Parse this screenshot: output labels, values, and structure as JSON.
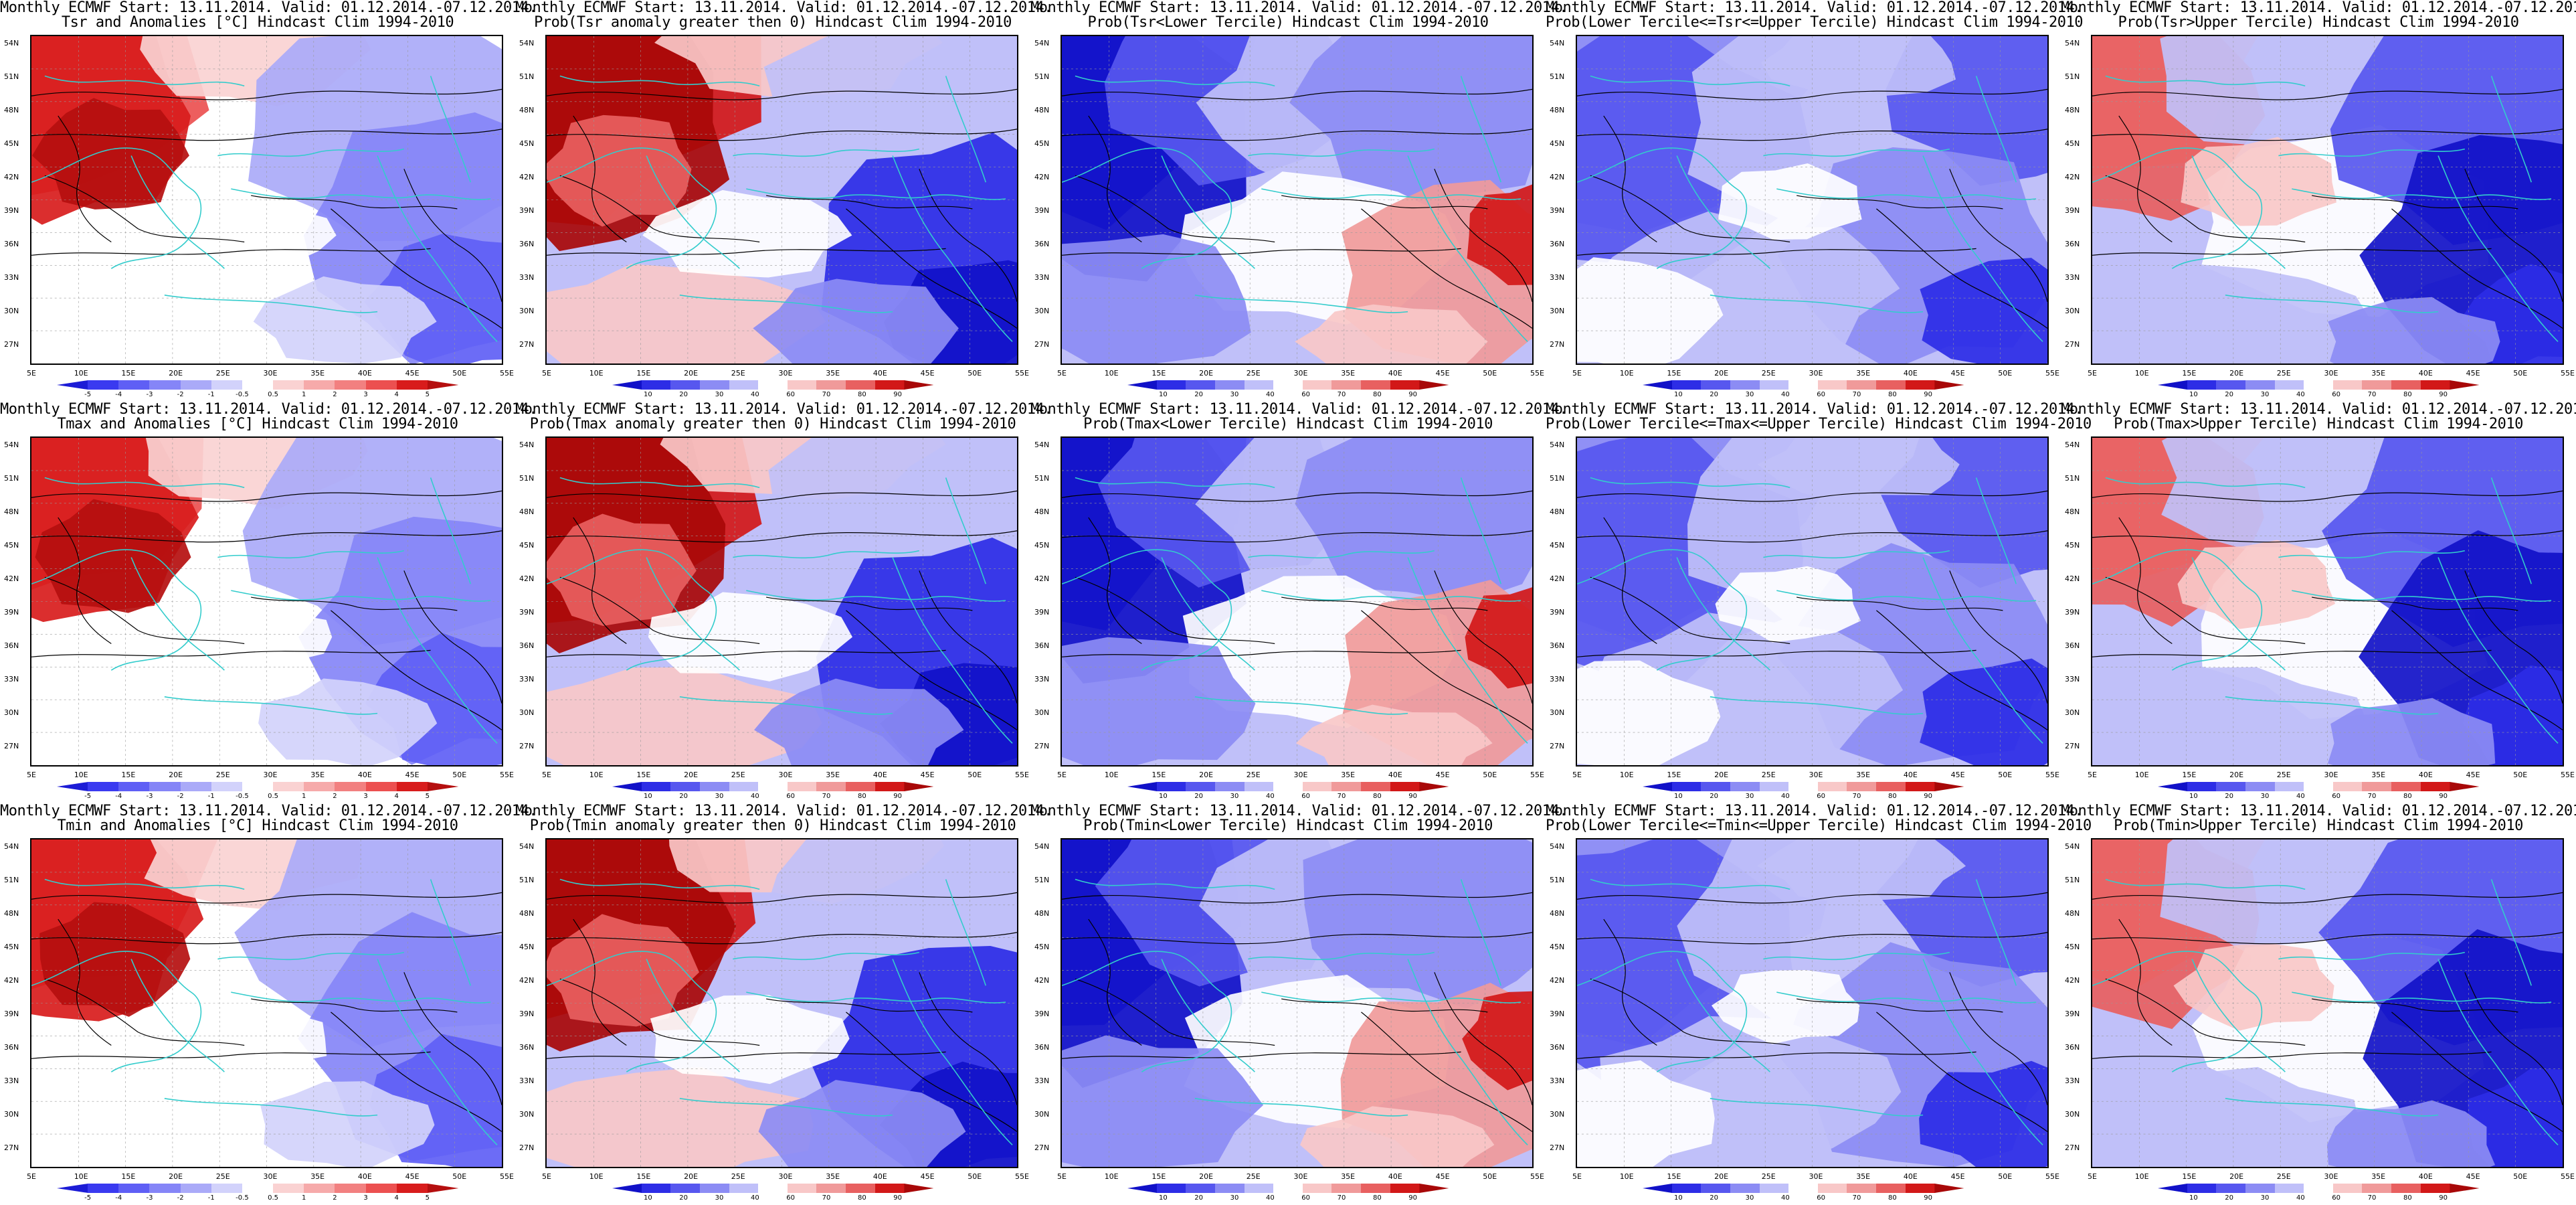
{
  "figure": {
    "line1": "Monthly ECMWF Start: 13.11.2014. Valid: 01.12.2014.-07.12.2014.",
    "lat_ticks": [
      "54N",
      "51N",
      "48N",
      "45N",
      "42N",
      "39N",
      "36N",
      "33N",
      "30N",
      "27N"
    ],
    "lon_ticks": [
      "5E",
      "10E",
      "15E",
      "20E",
      "25E",
      "30E",
      "35E",
      "40E",
      "45E",
      "50E",
      "55E"
    ],
    "colorbar_anomaly": [
      "-5",
      "-4",
      "-3",
      "-2",
      "-1",
      "-0.5",
      "0.5",
      "1",
      "2",
      "3",
      "4",
      "5"
    ],
    "colorbar_probability": [
      "10",
      "20",
      "30",
      "40",
      "60",
      "70",
      "80",
      "90"
    ]
  },
  "colors": {
    "anomaly_scale": [
      "#1c1cd6",
      "#3a3af0",
      "#5f5ff5",
      "#8585f7",
      "#aaaaf8",
      "#d2d2fb",
      "#ffffff",
      "#fad2d2",
      "#f6aaaa",
      "#f28080",
      "#ec5050",
      "#d81c1c",
      "#b50f0f"
    ],
    "prob_scale": [
      "#1111c8",
      "#2d2de6",
      "#5757ef",
      "#8c8cf4",
      "#c0c0f9",
      "#ffffff",
      "#f8c8c8",
      "#f09a9a",
      "#e86060",
      "#d21818",
      "#a80808"
    ],
    "coastline": "#33cccc",
    "contour": "#000000"
  },
  "panels": [
    {
      "id": "tsr-anom",
      "title2": "Tsr and Anomalies [°C] Hindcast Clim 1994-2010",
      "kind": "anomaly",
      "pattern": "A"
    },
    {
      "id": "tsr-pgt0",
      "title2": "Prob(Tsr anomaly greater then 0) Hindcast Clim 1994-2010",
      "kind": "prob",
      "pattern": "B"
    },
    {
      "id": "tsr-low",
      "title2": "Prob(Tsr<Lower Tercile) Hindcast Clim 1994-2010",
      "kind": "prob",
      "pattern": "C"
    },
    {
      "id": "tsr-mid",
      "title2": "Prob(Lower Tercile<=Tsr<=Upper Tercile) Hindcast Clim 1994-2010",
      "kind": "prob",
      "pattern": "D"
    },
    {
      "id": "tsr-up",
      "title2": "Prob(Tsr>Upper Tercile) Hindcast Clim 1994-2010",
      "kind": "prob",
      "pattern": "E"
    },
    {
      "id": "tmax-anom",
      "title2": "Tmax and Anomalies [°C] Hindcast Clim 1994-2010",
      "kind": "anomaly",
      "pattern": "A"
    },
    {
      "id": "tmax-pgt0",
      "title2": "Prob(Tmax anomaly greater then 0) Hindcast Clim 1994-2010",
      "kind": "prob",
      "pattern": "B"
    },
    {
      "id": "tmax-low",
      "title2": "Prob(Tmax<Lower Tercile) Hindcast Clim 1994-2010",
      "kind": "prob",
      "pattern": "C"
    },
    {
      "id": "tmax-mid",
      "title2": "Prob(Lower Tercile<=Tmax<=Upper Tercile) Hindcast Clim 1994-2010",
      "kind": "prob",
      "pattern": "D"
    },
    {
      "id": "tmax-up",
      "title2": "Prob(Tmax>Upper Tercile) Hindcast Clim 1994-2010",
      "kind": "prob",
      "pattern": "E"
    },
    {
      "id": "tmin-anom",
      "title2": "Tmin and Anomalies [°C] Hindcast Clim 1994-2010",
      "kind": "anomaly",
      "pattern": "A"
    },
    {
      "id": "tmin-pgt0",
      "title2": "Prob(Tmin anomaly greater then 0) Hindcast Clim 1994-2010",
      "kind": "prob",
      "pattern": "B"
    },
    {
      "id": "tmin-low",
      "title2": "Prob(Tmin<Lower Tercile) Hindcast Clim 1994-2010",
      "kind": "prob",
      "pattern": "C"
    },
    {
      "id": "tmin-mid",
      "title2": "Prob(Lower Tercile<=Tmin<=Upper Tercile) Hindcast Clim 1994-2010",
      "kind": "prob",
      "pattern": "D"
    },
    {
      "id": "tmin-up",
      "title2": "Prob(Tmin>Upper Tercile) Hindcast Clim 1994-2010",
      "kind": "prob",
      "pattern": "E"
    }
  ]
}
